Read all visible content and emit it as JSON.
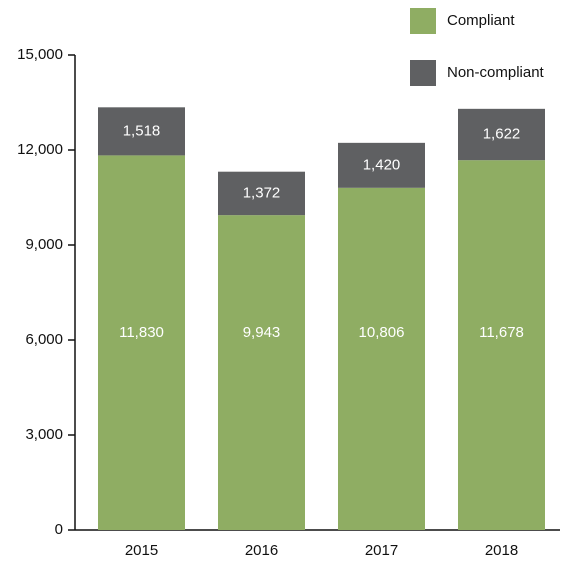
{
  "chart_data": {
    "type": "stacked_bar",
    "categories": [
      "2015",
      "2016",
      "2017",
      "2018"
    ],
    "series": [
      {
        "name": "Compliant",
        "color": "#8fad63",
        "values": [
          11830,
          9943,
          10806,
          11678
        ],
        "value_labels": [
          "11,830",
          "9,943",
          "10,806",
          "11,678"
        ]
      },
      {
        "name": "Non-compliant",
        "color": "#5f6062",
        "values": [
          1518,
          1372,
          1420,
          1622
        ],
        "value_labels": [
          "1,518",
          "1,372",
          "1,420",
          "1,622"
        ]
      }
    ],
    "ylim": [
      0,
      15000
    ],
    "yticks": [
      0,
      {
        "value": 3000,
        "label": "3,000"
      },
      {
        "value": 6000,
        "label": "6,000"
      },
      {
        "value": 9000,
        "label": "9,000"
      },
      {
        "value": 12000,
        "label": "12,000"
      },
      {
        "value": 15000,
        "label": "15,000"
      }
    ],
    "legend": "top-right"
  }
}
